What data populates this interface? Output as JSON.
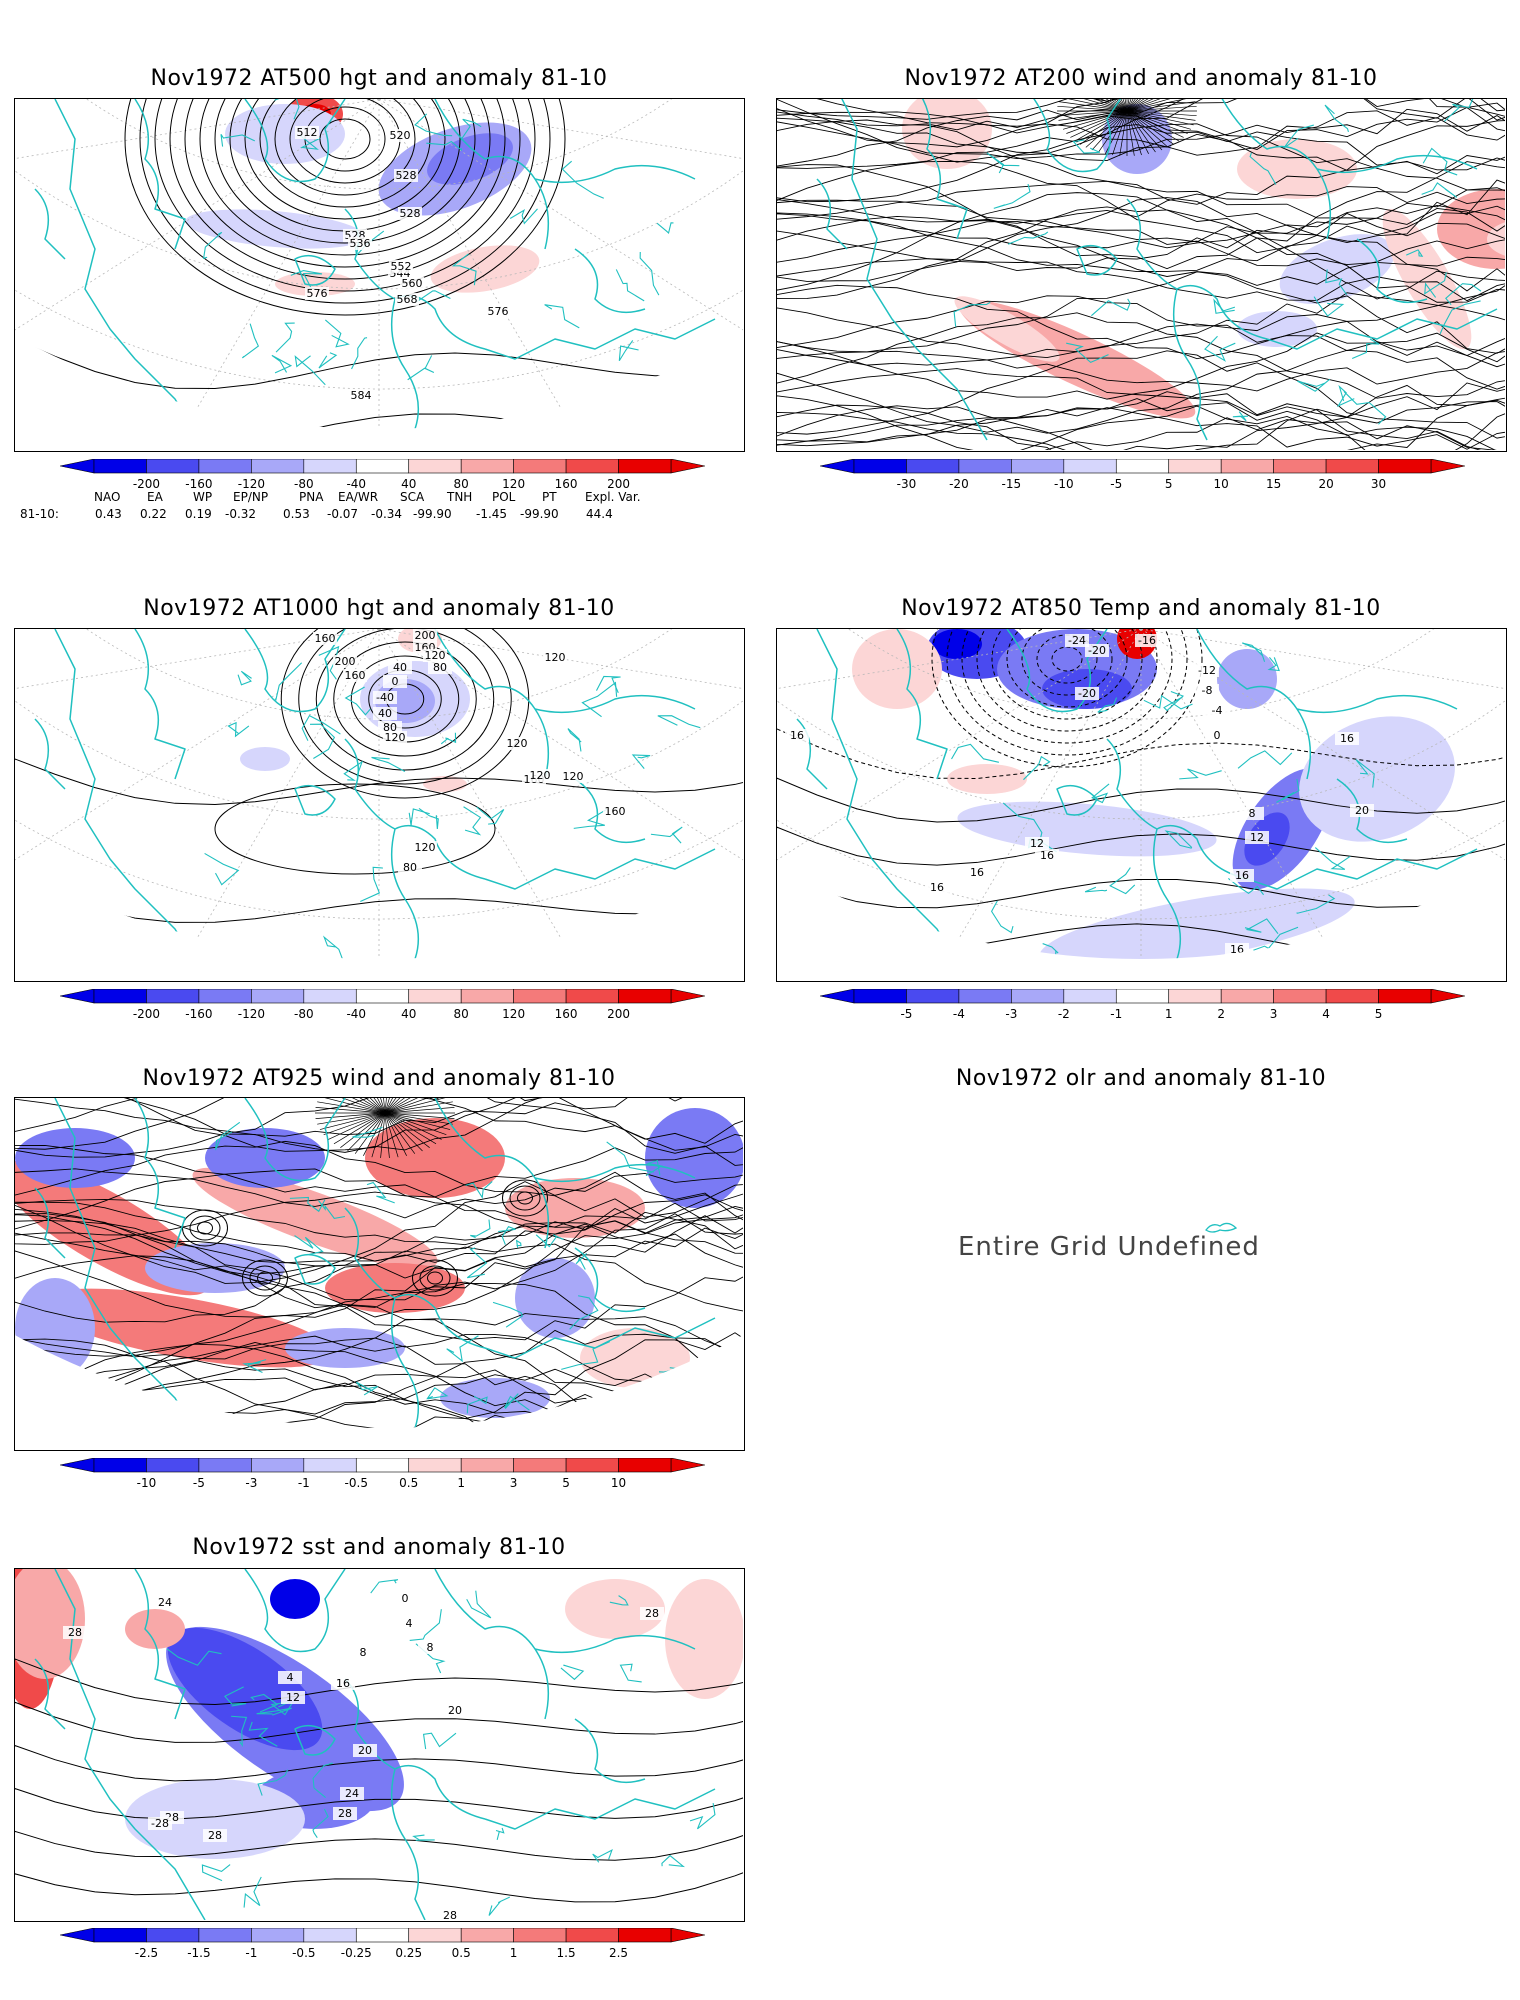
{
  "panels": {
    "z500": {
      "title": "Nov1972 AT500 hgt and anomaly 81-10",
      "contour_labels": [
        "512",
        "520",
        "528",
        "528",
        "536",
        "544",
        "552",
        "560",
        "568",
        "576",
        "576",
        "584",
        "528"
      ],
      "colorbar": [
        "-200",
        "-160",
        "-120",
        "-80",
        "-40",
        "40",
        "80",
        "120",
        "160",
        "200"
      ]
    },
    "u200": {
      "title": "Nov1972 AT200 wind and anomaly 81-10",
      "colorbar": [
        "-30",
        "-20",
        "-15",
        "-10",
        "-5",
        "5",
        "10",
        "15",
        "20",
        "30"
      ]
    },
    "z1000": {
      "title": "Nov1972 AT1000 hgt and anomaly 81-10",
      "contour_labels": [
        "200",
        "160",
        "120",
        "80",
        "40",
        "0",
        "-40",
        "40",
        "80",
        "120",
        "160",
        "200",
        "160",
        "120",
        "120",
        "160",
        "120",
        "120",
        "160",
        "120",
        "80"
      ],
      "colorbar": [
        "-200",
        "-160",
        "-120",
        "-80",
        "-40",
        "40",
        "80",
        "120",
        "160",
        "200"
      ]
    },
    "t850": {
      "title": "Nov1972 AT850 Temp and anomaly 81-10",
      "contour_labels": [
        "-24",
        "-20",
        "-16",
        "-12",
        "-8",
        "-4",
        "0",
        "-20",
        "8",
        "12",
        "16",
        "16",
        "16",
        "16",
        "12",
        "16",
        "16",
        "20",
        "16"
      ],
      "colorbar": [
        "-5",
        "-4",
        "-3",
        "-2",
        "-1",
        "1",
        "2",
        "3",
        "4",
        "5"
      ]
    },
    "u925": {
      "title": "Nov1972 AT925 wind and anomaly 81-10",
      "colorbar": [
        "-10",
        "-5",
        "-3",
        "-1",
        "-0.5",
        "0.5",
        "1",
        "3",
        "5",
        "10"
      ]
    },
    "olr": {
      "title": "Nov1972 olr and anomaly 81-10",
      "message": "Entire Grid Undefined"
    },
    "sst": {
      "title": "Nov1972 sst and anomaly 81-10",
      "contour_labels": [
        "28",
        "24",
        "4",
        "8",
        "12",
        "16",
        "20",
        "24",
        "28",
        "28",
        "-28",
        "28",
        "20",
        "0",
        "4",
        "8",
        "28",
        "28"
      ],
      "colorbar": [
        "-2.5",
        "-1.5",
        "-1",
        "-0.5",
        "-0.25",
        "0.25",
        "0.5",
        "1",
        "1.5",
        "2.5"
      ]
    }
  },
  "teleconnections": {
    "headers": [
      "NAO",
      "EA",
      "WP",
      "EP/NP",
      "PNA",
      "EA/WR",
      "SCA",
      "TNH",
      "POL",
      "PT",
      "Expl. Var."
    ],
    "row_label": "81-10:",
    "values": [
      "0.43",
      "0.22",
      "0.19",
      "-0.32",
      "0.53",
      "-0.07",
      "-0.34",
      "-99.90",
      "-1.45",
      "-99.90",
      "44.4"
    ]
  },
  "colors": {
    "coast": "#20c0c0",
    "neg": [
      "#0000e8",
      "#4a4af0",
      "#7a7af4",
      "#a8a8f8",
      "#d6d6fc"
    ],
    "pos": [
      "#fcd6d6",
      "#f8a8a8",
      "#f47a7a",
      "#f04a4a",
      "#e80000"
    ]
  }
}
